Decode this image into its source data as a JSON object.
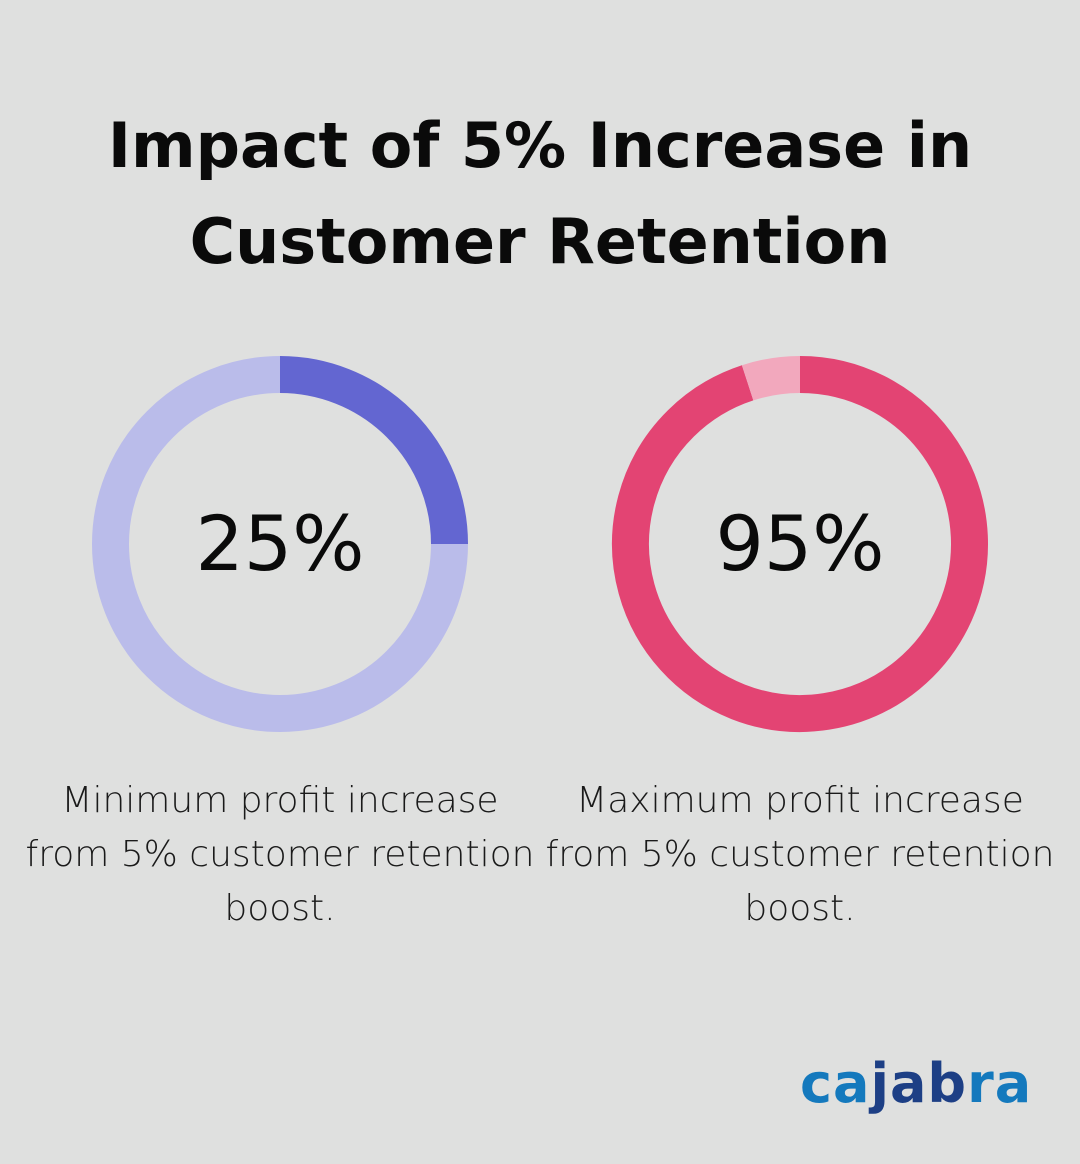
{
  "title": "Impact of 5% Increase in Customer Retention",
  "chart_data": [
    {
      "type": "pie",
      "variant": "donut",
      "value_label": "25%",
      "values": [
        25,
        75
      ],
      "colors": [
        "#6366d1",
        "#babcea"
      ],
      "description": "Minimum profit increase from 5% customer retention boost."
    },
    {
      "type": "pie",
      "variant": "donut",
      "value_label": "95%",
      "values": [
        95,
        5
      ],
      "colors": [
        "#e34473",
        "#f2a8bd"
      ],
      "description": "Maximum profit increase from 5% customer retention boost."
    }
  ],
  "logo": {
    "parts": [
      "ca",
      "jab",
      "ra"
    ],
    "colors": [
      "#1479bd",
      "#1d3f85",
      "#1479bd"
    ]
  }
}
